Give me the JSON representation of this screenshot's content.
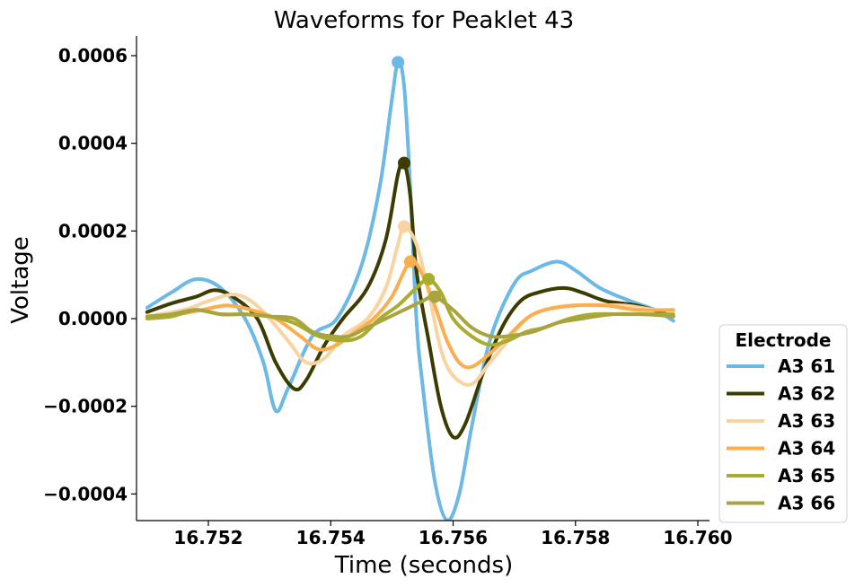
{
  "chart_data": {
    "type": "line",
    "title": "Waveforms for Peaklet 43",
    "xlabel": "Time (seconds)",
    "ylabel": "Voltage",
    "xlim": [
      16.7505,
      16.7602
    ],
    "ylim": [
      -0.00046,
      0.00065
    ],
    "xticks": [
      16.752,
      16.754,
      16.756,
      16.758,
      16.76
    ],
    "xtick_labels": [
      "16.752",
      "16.754",
      "16.756",
      "16.758",
      "16.760"
    ],
    "yticks": [
      -0.0004,
      -0.0002,
      0.0,
      0.0002,
      0.0004,
      0.0006
    ],
    "ytick_labels": [
      "−0.0004",
      "−0.0002",
      "0.0000",
      "0.0002",
      "0.0004",
      "0.0006"
    ],
    "grid": false,
    "legend": {
      "title": "Electrode",
      "placement": "lower-right-outside"
    },
    "series": [
      {
        "name": "A3 61",
        "color": "#6cb8e6",
        "peak": [
          16.7551,
          0.000585
        ],
        "points": [
          [
            16.751,
            2.5e-05
          ],
          [
            16.7514,
            6e-05
          ],
          [
            16.7518,
            9e-05
          ],
          [
            16.7522,
            7e-05
          ],
          [
            16.7526,
            0.0
          ],
          [
            16.7529,
            -0.0001
          ],
          [
            16.7531,
            -0.00021
          ],
          [
            16.7533,
            -0.00016
          ],
          [
            16.7537,
            -4e-05
          ],
          [
            16.7541,
            0.0
          ],
          [
            16.7545,
            0.00012
          ],
          [
            16.7548,
            0.0003
          ],
          [
            16.755,
            0.0005
          ],
          [
            16.7551,
            0.000585
          ],
          [
            16.7552,
            0.00053
          ],
          [
            16.7553,
            0.0003
          ],
          [
            16.7554,
            0.0
          ],
          [
            16.7555,
            -0.00015
          ],
          [
            16.7557,
            -0.00037
          ],
          [
            16.7559,
            -0.00046
          ],
          [
            16.7561,
            -0.0004
          ],
          [
            16.7563,
            -0.00025
          ],
          [
            16.7566,
            -5e-05
          ],
          [
            16.757,
            8e-05
          ],
          [
            16.7573,
            0.00011
          ],
          [
            16.7577,
            0.00013
          ],
          [
            16.758,
            0.00011
          ],
          [
            16.7584,
            7e-05
          ],
          [
            16.7589,
            4e-05
          ],
          [
            16.7593,
            2e-05
          ],
          [
            16.7596,
            -5e-06
          ]
        ]
      },
      {
        "name": "A3 62",
        "color": "#3c3c00",
        "peak": [
          16.7552,
          0.000355
        ],
        "points": [
          [
            16.751,
            1.5e-05
          ],
          [
            16.7514,
            3.5e-05
          ],
          [
            16.7518,
            5e-05
          ],
          [
            16.7521,
            6.5e-05
          ],
          [
            16.7524,
            5e-05
          ],
          [
            16.7528,
            0.0
          ],
          [
            16.7531,
            -0.0001
          ],
          [
            16.7534,
            -0.00016
          ],
          [
            16.7536,
            -0.00014
          ],
          [
            16.7539,
            -6e-05
          ],
          [
            16.7542,
            0.0
          ],
          [
            16.7546,
            7e-05
          ],
          [
            16.7549,
            0.00018
          ],
          [
            16.7551,
            0.00033
          ],
          [
            16.7552,
            0.000355
          ],
          [
            16.7553,
            0.00028
          ],
          [
            16.7554,
            0.00011
          ],
          [
            16.7556,
            -5e-05
          ],
          [
            16.7558,
            -0.0002
          ],
          [
            16.756,
            -0.00027
          ],
          [
            16.7562,
            -0.00024
          ],
          [
            16.7565,
            -0.00012
          ],
          [
            16.7568,
            -2e-05
          ],
          [
            16.7571,
            4e-05
          ],
          [
            16.7574,
            6e-05
          ],
          [
            16.7578,
            7e-05
          ],
          [
            16.7581,
            6e-05
          ],
          [
            16.7585,
            4e-05
          ],
          [
            16.759,
            3e-05
          ],
          [
            16.7596,
            5e-06
          ]
        ]
      },
      {
        "name": "A3 63",
        "color": "#fad4a0",
        "peak": [
          16.7552,
          0.00021
        ],
        "points": [
          [
            16.751,
            5e-06
          ],
          [
            16.7516,
            2e-05
          ],
          [
            16.752,
            4e-05
          ],
          [
            16.7524,
            5.5e-05
          ],
          [
            16.7527,
            4e-05
          ],
          [
            16.753,
            0.0
          ],
          [
            16.7533,
            -5e-05
          ],
          [
            16.7536,
            -0.0001
          ],
          [
            16.7539,
            -9e-05
          ],
          [
            16.7542,
            -4e-05
          ],
          [
            16.7546,
            0.0
          ],
          [
            16.7549,
            7e-05
          ],
          [
            16.7551,
            0.00017
          ],
          [
            16.7552,
            0.00021
          ],
          [
            16.7554,
            0.00017
          ],
          [
            16.7556,
            6e-05
          ],
          [
            16.7558,
            -7e-05
          ],
          [
            16.756,
            -0.00013
          ],
          [
            16.7563,
            -0.00015
          ],
          [
            16.7566,
            -0.0001
          ],
          [
            16.7569,
            -5e-05
          ],
          [
            16.7572,
            0.0
          ],
          [
            16.7575,
            2e-05
          ],
          [
            16.7579,
            3e-05
          ],
          [
            16.7583,
            3e-05
          ],
          [
            16.7588,
            3e-05
          ],
          [
            16.7593,
            2e-05
          ],
          [
            16.7596,
            2e-05
          ]
        ]
      },
      {
        "name": "A3 64",
        "color": "#fbae4e",
        "peak": [
          16.7553,
          0.00013
        ],
        "points": [
          [
            16.751,
            5e-06
          ],
          [
            16.7515,
            1e-05
          ],
          [
            16.7519,
            2e-05
          ],
          [
            16.7523,
            3e-05
          ],
          [
            16.7527,
            2e-05
          ],
          [
            16.7531,
            0.0
          ],
          [
            16.7535,
            -4e-05
          ],
          [
            16.7538,
            -7e-05
          ],
          [
            16.7541,
            -6e-05
          ],
          [
            16.7544,
            -3e-05
          ],
          [
            16.7547,
            0.0
          ],
          [
            16.755,
            5e-05
          ],
          [
            16.7553,
            0.00013
          ],
          [
            16.7555,
            0.0001
          ],
          [
            16.7557,
            3e-05
          ],
          [
            16.7559,
            -5e-05
          ],
          [
            16.7561,
            -0.0001
          ],
          [
            16.7563,
            -0.00011
          ],
          [
            16.7566,
            -8e-05
          ],
          [
            16.7569,
            -4e-05
          ],
          [
            16.7572,
            0.0
          ],
          [
            16.7575,
            2e-05
          ],
          [
            16.758,
            3e-05
          ],
          [
            16.7585,
            3e-05
          ],
          [
            16.759,
            2e-05
          ],
          [
            16.7596,
            2e-05
          ]
        ]
      },
      {
        "name": "A3 65",
        "color": "#a8ad2e",
        "peak": [
          16.7556,
          9e-05
        ],
        "points": [
          [
            16.751,
            0.0
          ],
          [
            16.7514,
            5e-06
          ],
          [
            16.7518,
            2e-05
          ],
          [
            16.7522,
            1e-05
          ],
          [
            16.7526,
            1e-05
          ],
          [
            16.753,
            5e-06
          ],
          [
            16.7534,
            -1e-05
          ],
          [
            16.7538,
            -4e-05
          ],
          [
            16.7542,
            -5e-05
          ],
          [
            16.7545,
            -4e-05
          ],
          [
            16.7548,
            0.0
          ],
          [
            16.7551,
            3e-05
          ],
          [
            16.7554,
            7e-05
          ],
          [
            16.7556,
            9e-05
          ],
          [
            16.7558,
            6e-05
          ],
          [
            16.756,
            0.0
          ],
          [
            16.7563,
            -4e-05
          ],
          [
            16.7566,
            -6e-05
          ],
          [
            16.7569,
            -5e-05
          ],
          [
            16.7572,
            -3e-05
          ],
          [
            16.7575,
            -2e-05
          ],
          [
            16.7579,
            0.0
          ],
          [
            16.7583,
            1e-05
          ],
          [
            16.7588,
            1e-05
          ],
          [
            16.7593,
            1e-05
          ],
          [
            16.7596,
            1e-05
          ]
        ]
      },
      {
        "name": "A3 66",
        "color": "#a9a440",
        "peak": [
          16.7557,
          5e-05
        ],
        "points": [
          [
            16.751,
            5e-06
          ],
          [
            16.7514,
            1e-05
          ],
          [
            16.7518,
            2e-05
          ],
          [
            16.7522,
            1e-05
          ],
          [
            16.7526,
            1e-05
          ],
          [
            16.753,
            5e-06
          ],
          [
            16.7534,
            0.0
          ],
          [
            16.7537,
            -3e-05
          ],
          [
            16.754,
            -4e-05
          ],
          [
            16.7543,
            -4e-05
          ],
          [
            16.7546,
            -2e-05
          ],
          [
            16.7549,
            0.0
          ],
          [
            16.7552,
            2e-05
          ],
          [
            16.7555,
            4e-05
          ],
          [
            16.7557,
            5e-05
          ],
          [
            16.756,
            2e-05
          ],
          [
            16.7563,
            -2e-05
          ],
          [
            16.7566,
            -4e-05
          ],
          [
            16.7569,
            -4e-05
          ],
          [
            16.7573,
            -3e-05
          ],
          [
            16.7577,
            -1e-05
          ],
          [
            16.7581,
            0.0
          ],
          [
            16.7586,
            1e-05
          ],
          [
            16.7591,
            1e-05
          ],
          [
            16.7596,
            5e-06
          ]
        ]
      }
    ]
  }
}
